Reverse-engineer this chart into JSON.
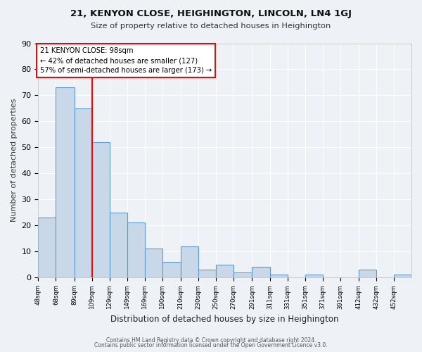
{
  "title": "21, KENYON CLOSE, HEIGHINGTON, LINCOLN, LN4 1GJ",
  "subtitle": "Size of property relative to detached houses in Heighington",
  "xlabel": "Distribution of detached houses by size in Heighington",
  "ylabel": "Number of detached properties",
  "bar_values": [
    23,
    73,
    65,
    52,
    25,
    21,
    11,
    6,
    12,
    3,
    5,
    2,
    4,
    1,
    0,
    1,
    0,
    0,
    3,
    0,
    1
  ],
  "bin_labels": [
    "48sqm",
    "68sqm",
    "89sqm",
    "109sqm",
    "129sqm",
    "149sqm",
    "169sqm",
    "190sqm",
    "210sqm",
    "230sqm",
    "250sqm",
    "270sqm",
    "291sqm",
    "311sqm",
    "331sqm",
    "351sqm",
    "371sqm",
    "391sqm",
    "412sqm",
    "432sqm",
    "452sqm"
  ],
  "bin_edges": [
    38,
    58,
    79,
    99,
    119,
    139,
    159,
    179,
    200,
    220,
    240,
    260,
    281,
    301,
    321,
    341,
    361,
    381,
    402,
    422,
    442,
    462
  ],
  "bar_color": "#c8d8e8",
  "bar_edge_color": "#5b9bd5",
  "vline_x": 99,
  "vline_color": "red",
  "annotation_text": "21 KENYON CLOSE: 98sqm\n← 42% of detached houses are smaller (127)\n57% of semi-detached houses are larger (173) →",
  "annotation_box_color": "white",
  "annotation_box_edge_color": "red",
  "ylim": [
    0,
    90
  ],
  "yticks": [
    0,
    10,
    20,
    30,
    40,
    50,
    60,
    70,
    80,
    90
  ],
  "background_color": "#eef2f7",
  "grid_color": "white",
  "footer_line1": "Contains HM Land Registry data © Crown copyright and database right 2024.",
  "footer_line2": "Contains public sector information licensed under the Open Government Licence v3.0."
}
